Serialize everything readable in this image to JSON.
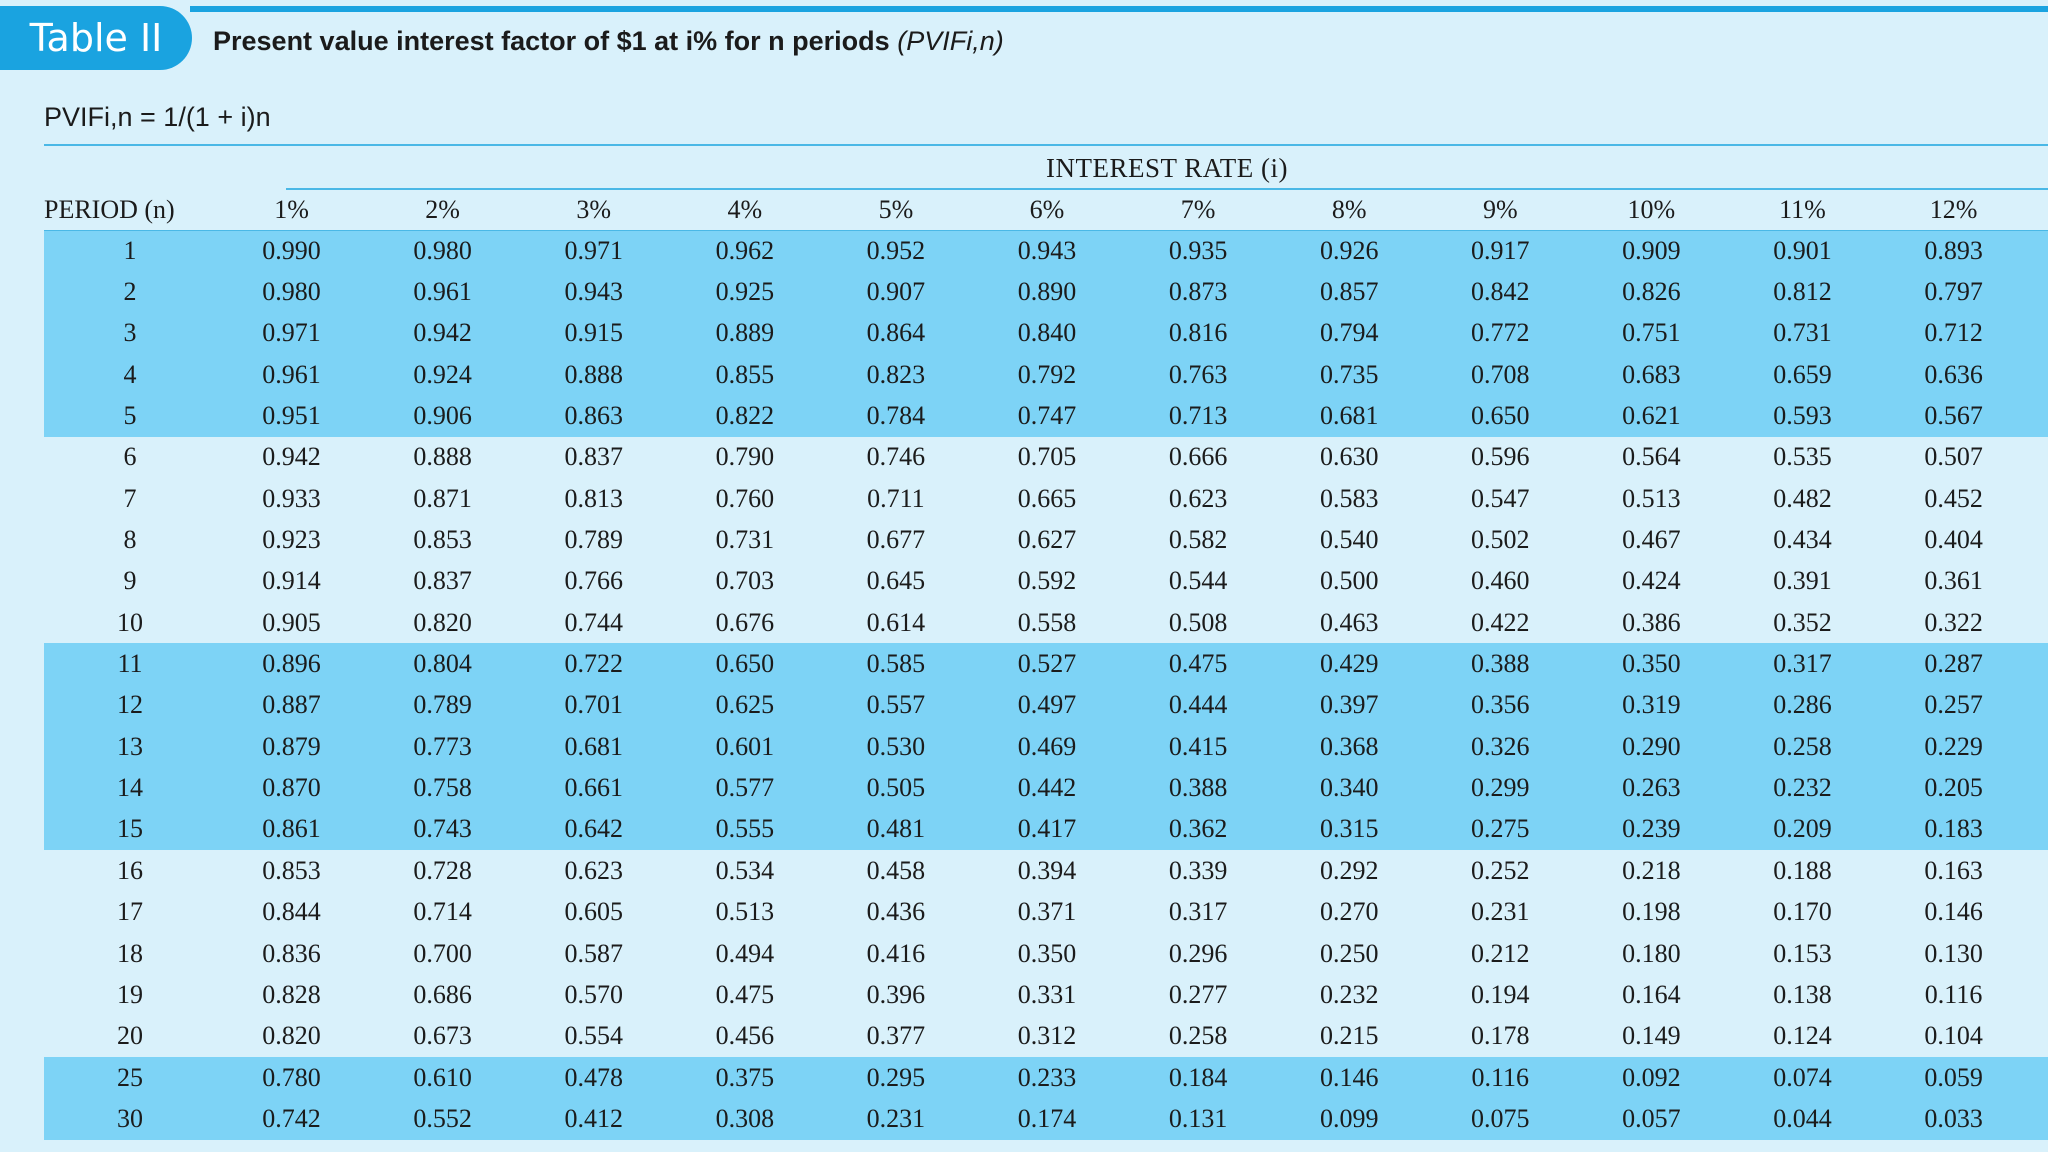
{
  "badge": "Table II",
  "title": {
    "main": "Present value interest factor of $1 at i% for n periods",
    "suffix": "(PVIFi,n)"
  },
  "formula": "PVIFi,n = 1/(1 + i)n",
  "group_header": "INTEREST RATE (i)",
  "columns": {
    "period_label": "PERIOD (n)",
    "rates": [
      "1%",
      "2%",
      "3%",
      "4%",
      "5%",
      "6%",
      "7%",
      "8%",
      "9%",
      "10%",
      "11%",
      "12%"
    ]
  },
  "rows": [
    {
      "period": "1",
      "shade": true,
      "values": [
        "0.990",
        "0.980",
        "0.971",
        "0.962",
        "0.952",
        "0.943",
        "0.935",
        "0.926",
        "0.917",
        "0.909",
        "0.901",
        "0.893"
      ]
    },
    {
      "period": "2",
      "shade": true,
      "values": [
        "0.980",
        "0.961",
        "0.943",
        "0.925",
        "0.907",
        "0.890",
        "0.873",
        "0.857",
        "0.842",
        "0.826",
        "0.812",
        "0.797"
      ]
    },
    {
      "period": "3",
      "shade": true,
      "values": [
        "0.971",
        "0.942",
        "0.915",
        "0.889",
        "0.864",
        "0.840",
        "0.816",
        "0.794",
        "0.772",
        "0.751",
        "0.731",
        "0.712"
      ]
    },
    {
      "period": "4",
      "shade": true,
      "values": [
        "0.961",
        "0.924",
        "0.888",
        "0.855",
        "0.823",
        "0.792",
        "0.763",
        "0.735",
        "0.708",
        "0.683",
        "0.659",
        "0.636"
      ]
    },
    {
      "period": "5",
      "shade": true,
      "values": [
        "0.951",
        "0.906",
        "0.863",
        "0.822",
        "0.784",
        "0.747",
        "0.713",
        "0.681",
        "0.650",
        "0.621",
        "0.593",
        "0.567"
      ]
    },
    {
      "period": "6",
      "shade": false,
      "values": [
        "0.942",
        "0.888",
        "0.837",
        "0.790",
        "0.746",
        "0.705",
        "0.666",
        "0.630",
        "0.596",
        "0.564",
        "0.535",
        "0.507"
      ]
    },
    {
      "period": "7",
      "shade": false,
      "values": [
        "0.933",
        "0.871",
        "0.813",
        "0.760",
        "0.711",
        "0.665",
        "0.623",
        "0.583",
        "0.547",
        "0.513",
        "0.482",
        "0.452"
      ]
    },
    {
      "period": "8",
      "shade": false,
      "values": [
        "0.923",
        "0.853",
        "0.789",
        "0.731",
        "0.677",
        "0.627",
        "0.582",
        "0.540",
        "0.502",
        "0.467",
        "0.434",
        "0.404"
      ]
    },
    {
      "period": "9",
      "shade": false,
      "values": [
        "0.914",
        "0.837",
        "0.766",
        "0.703",
        "0.645",
        "0.592",
        "0.544",
        "0.500",
        "0.460",
        "0.424",
        "0.391",
        "0.361"
      ]
    },
    {
      "period": "10",
      "shade": false,
      "values": [
        "0.905",
        "0.820",
        "0.744",
        "0.676",
        "0.614",
        "0.558",
        "0.508",
        "0.463",
        "0.422",
        "0.386",
        "0.352",
        "0.322"
      ]
    },
    {
      "period": "11",
      "shade": true,
      "values": [
        "0.896",
        "0.804",
        "0.722",
        "0.650",
        "0.585",
        "0.527",
        "0.475",
        "0.429",
        "0.388",
        "0.350",
        "0.317",
        "0.287"
      ]
    },
    {
      "period": "12",
      "shade": true,
      "values": [
        "0.887",
        "0.789",
        "0.701",
        "0.625",
        "0.557",
        "0.497",
        "0.444",
        "0.397",
        "0.356",
        "0.319",
        "0.286",
        "0.257"
      ]
    },
    {
      "period": "13",
      "shade": true,
      "values": [
        "0.879",
        "0.773",
        "0.681",
        "0.601",
        "0.530",
        "0.469",
        "0.415",
        "0.368",
        "0.326",
        "0.290",
        "0.258",
        "0.229"
      ]
    },
    {
      "period": "14",
      "shade": true,
      "values": [
        "0.870",
        "0.758",
        "0.661",
        "0.577",
        "0.505",
        "0.442",
        "0.388",
        "0.340",
        "0.299",
        "0.263",
        "0.232",
        "0.205"
      ]
    },
    {
      "period": "15",
      "shade": true,
      "values": [
        "0.861",
        "0.743",
        "0.642",
        "0.555",
        "0.481",
        "0.417",
        "0.362",
        "0.315",
        "0.275",
        "0.239",
        "0.209",
        "0.183"
      ]
    },
    {
      "period": "16",
      "shade": false,
      "values": [
        "0.853",
        "0.728",
        "0.623",
        "0.534",
        "0.458",
        "0.394",
        "0.339",
        "0.292",
        "0.252",
        "0.218",
        "0.188",
        "0.163"
      ]
    },
    {
      "period": "17",
      "shade": false,
      "values": [
        "0.844",
        "0.714",
        "0.605",
        "0.513",
        "0.436",
        "0.371",
        "0.317",
        "0.270",
        "0.231",
        "0.198",
        "0.170",
        "0.146"
      ]
    },
    {
      "period": "18",
      "shade": false,
      "values": [
        "0.836",
        "0.700",
        "0.587",
        "0.494",
        "0.416",
        "0.350",
        "0.296",
        "0.250",
        "0.212",
        "0.180",
        "0.153",
        "0.130"
      ]
    },
    {
      "period": "19",
      "shade": false,
      "values": [
        "0.828",
        "0.686",
        "0.570",
        "0.475",
        "0.396",
        "0.331",
        "0.277",
        "0.232",
        "0.194",
        "0.164",
        "0.138",
        "0.116"
      ]
    },
    {
      "period": "20",
      "shade": false,
      "values": [
        "0.820",
        "0.673",
        "0.554",
        "0.456",
        "0.377",
        "0.312",
        "0.258",
        "0.215",
        "0.178",
        "0.149",
        "0.124",
        "0.104"
      ]
    },
    {
      "period": "25",
      "shade": true,
      "values": [
        "0.780",
        "0.610",
        "0.478",
        "0.375",
        "0.295",
        "0.233",
        "0.184",
        "0.146",
        "0.116",
        "0.092",
        "0.074",
        "0.059"
      ]
    },
    {
      "period": "30",
      "shade": true,
      "values": [
        "0.742",
        "0.552",
        "0.412",
        "0.308",
        "0.231",
        "0.174",
        "0.131",
        "0.099",
        "0.075",
        "0.057",
        "0.044",
        "0.033"
      ]
    }
  ],
  "colors": {
    "accent": "#1aa3e0",
    "shade": "#7dd3f6",
    "background": "#d9f1fb"
  }
}
